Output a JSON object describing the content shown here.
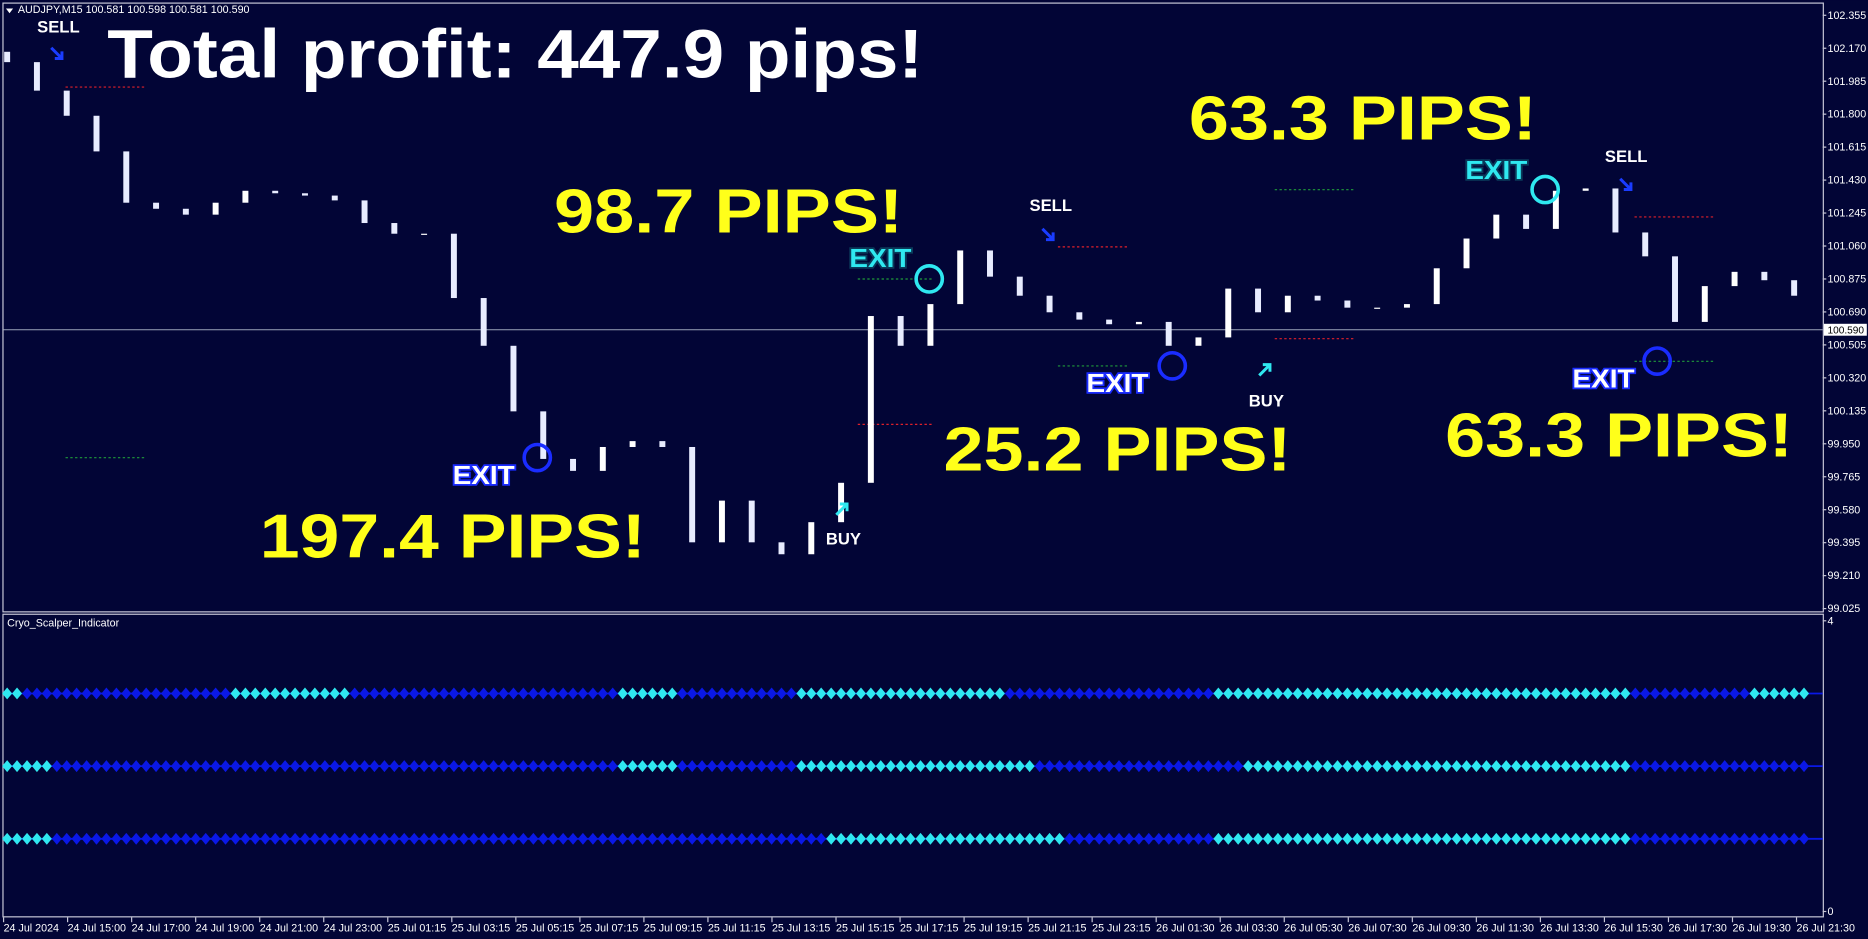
{
  "chart_data": [
    {
      "type": "candlestick",
      "header": "AUDJPY,M15  100.581 100.598 100.581 100.590",
      "open": [
        102.15,
        102.092,
        101.932,
        101.791,
        101.591,
        101.303,
        101.269,
        101.236,
        101.303,
        101.37,
        101.356,
        101.343,
        101.316,
        101.189,
        101.129,
        101.129,
        100.768,
        100.5,
        100.132,
        99.865,
        99.798,
        99.932,
        99.965,
        99.932,
        99.397,
        99.631,
        99.397,
        99.33,
        99.51,
        99.731,
        100.667,
        100.5,
        100.734,
        101.035,
        100.888,
        100.781,
        100.688,
        100.647,
        100.621,
        100.634,
        100.5,
        100.547,
        100.821,
        100.688,
        100.781,
        100.754,
        100.714,
        100.714,
        100.734,
        100.935,
        101.102,
        101.236,
        101.156,
        101.37,
        101.383,
        101.136,
        101.002,
        100.634,
        100.835,
        100.915,
        100.868
      ],
      "close": [
        102.092,
        101.932,
        101.791,
        101.591,
        101.303,
        101.269,
        101.236,
        101.303,
        101.37,
        101.356,
        101.343,
        101.316,
        101.189,
        101.129,
        101.129,
        100.768,
        100.5,
        100.132,
        99.865,
        99.798,
        99.932,
        99.965,
        99.932,
        99.397,
        99.631,
        99.397,
        99.33,
        99.51,
        99.731,
        100.667,
        100.5,
        100.734,
        101.035,
        100.888,
        100.781,
        100.688,
        100.647,
        100.621,
        100.634,
        100.5,
        100.547,
        100.821,
        100.688,
        100.781,
        100.754,
        100.714,
        100.714,
        100.734,
        100.935,
        101.102,
        101.236,
        101.156,
        101.37,
        101.383,
        101.136,
        101.002,
        100.634,
        100.835,
        100.915,
        100.868,
        100.781
      ],
      "up_color": "#ffffff",
      "down_color": "#e8ecff",
      "ylim": [
        99.01,
        102.42
      ],
      "yticks": [
        102.355,
        {
          "value": 102.17,
          "label": "102.170"
        },
        101.985,
        {
          "value": 101.8,
          "label": "101.800"
        },
        101.615,
        {
          "value": 101.43,
          "label": "101.430"
        },
        101.245,
        {
          "value": 101.06,
          "label": "101.060"
        },
        100.875,
        {
          "value": 100.69,
          "label": "100.690"
        },
        100.505,
        {
          "value": 100.32,
          "label": "100.320"
        },
        100.135,
        {
          "value": 99.95,
          "label": "99.950"
        },
        99.765,
        {
          "value": 99.58,
          "label": "99.580"
        },
        99.395,
        {
          "value": 99.21,
          "label": "99.210"
        },
        99.025
      ],
      "x_labels": [
        "24 Jul 2024",
        "24 Jul 15:00",
        "24 Jul 17:00",
        "24 Jul 19:00",
        "24 Jul 21:00",
        "24 Jul 23:00",
        "25 Jul 01:15",
        "25 Jul 03:15",
        "25 Jul 05:15",
        "25 Jul 07:15",
        "25 Jul 09:15",
        "25 Jul 11:15",
        "25 Jul 13:15",
        "25 Jul 15:15",
        "25 Jul 17:15",
        "25 Jul 19:15",
        "25 Jul 21:15",
        "25 Jul 23:15",
        "26 Jul 01:30",
        "26 Jul 03:30",
        "26 Jul 05:30",
        "26 Jul 07:30",
        "26 Jul 09:30",
        "26 Jul 11:30",
        "26 Jul 13:30",
        "26 Jul 15:30",
        "26 Jul 17:30",
        "26 Jul 19:30",
        "26 Jul 21:30"
      ],
      "current_price": {
        "value": 100.59,
        "label": "100.590"
      },
      "levels": [
        {
          "value": 101.952,
          "color": "#e0202a"
        },
        {
          "value": 99.872,
          "color": "#1f9a3a"
        },
        {
          "value": 100.059,
          "color": "#e0202a"
        },
        {
          "value": 100.875,
          "color": "#1f9a3a"
        },
        {
          "value": 101.055,
          "color": "#e0202a"
        },
        {
          "value": 100.387,
          "color": "#1f9a3a"
        },
        {
          "value": 101.376,
          "color": "#1f9a3a"
        },
        {
          "value": 100.54,
          "color": "#e0202a"
        },
        {
          "value": 101.223,
          "color": "#e0202a"
        },
        {
          "value": 100.413,
          "color": "#1f9a3a"
        }
      ],
      "annotations": [
        {
          "text": "Total profit: 447.9 pips!",
          "color": "#ffffff"
        },
        {
          "text": "98.7 PIPS!",
          "color": "#ffff1a"
        },
        {
          "text": "63.3 PIPS!",
          "color": "#ffff1a"
        },
        {
          "text": "197.4 PIPS!",
          "color": "#ffff1a"
        },
        {
          "text": "25.2 PIPS!",
          "color": "#ffff1a"
        },
        {
          "text": "63.3 PIPS!",
          "color": "#ffff1a"
        }
      ],
      "exits": [
        {
          "text": "EXIT",
          "color": "#ffffff",
          "ring": "#1a2cff"
        },
        {
          "text": "EXIT",
          "color": "#2fe8f0",
          "ring": "#2fe8f0"
        },
        {
          "text": "EXIT",
          "color": "#2fe8f0",
          "ring": "#2fe8f0"
        },
        {
          "text": "EXIT",
          "color": "#ffffff",
          "ring": "#1a2cff"
        },
        {
          "text": "EXIT",
          "color": "#ffffff",
          "ring": "#1a2cff"
        }
      ],
      "signals": [
        {
          "text": "SELL",
          "arrow_color": "#1a3cff"
        },
        {
          "text": "SELL",
          "arrow_color": "#1a3cff"
        },
        {
          "text": "SELL",
          "arrow_color": "#1a3cff"
        },
        {
          "text": "BUY",
          "arrow_color": "#2fe8f0"
        },
        {
          "text": "BUY",
          "arrow_color": "#2fe8f0"
        }
      ]
    },
    {
      "type": "signal-lanes",
      "title": "Cryo_Scalper_Indicator",
      "ylim": [
        0,
        4
      ],
      "yticks": [
        0,
        4
      ],
      "on_color": "#2fe8f0",
      "off_color": "#0a18e6",
      "lanes": [
        {
          "level": 3,
          "values": [
            1,
            0,
            0,
            0,
            0,
            0,
            0,
            0,
            1,
            1,
            1,
            1,
            0,
            0,
            0,
            0,
            0,
            0,
            0,
            0,
            0,
            1,
            1,
            0,
            0,
            0,
            0,
            1,
            1,
            1,
            1,
            1,
            1,
            1,
            0,
            0,
            0,
            0,
            0,
            0,
            0,
            1,
            1,
            1,
            1,
            1,
            1,
            1,
            1,
            1,
            1,
            1,
            1,
            1,
            1,
            0,
            0,
            0,
            0,
            1,
            1
          ]
        },
        {
          "level": 2,
          "values": [
            1,
            1,
            0,
            0,
            0,
            0,
            0,
            0,
            0,
            0,
            0,
            0,
            0,
            0,
            0,
            0,
            0,
            0,
            0,
            0,
            0,
            1,
            1,
            0,
            0,
            0,
            0,
            1,
            1,
            1,
            1,
            1,
            1,
            1,
            1,
            0,
            0,
            0,
            0,
            0,
            0,
            0,
            1,
            1,
            1,
            1,
            1,
            1,
            1,
            1,
            1,
            1,
            1,
            1,
            1,
            0,
            0,
            0,
            0,
            0,
            0
          ]
        },
        {
          "level": 1,
          "values": [
            1,
            1,
            0,
            0,
            0,
            0,
            0,
            0,
            0,
            0,
            0,
            0,
            0,
            0,
            0,
            0,
            0,
            0,
            0,
            0,
            0,
            0,
            0,
            0,
            0,
            0,
            0,
            0,
            1,
            1,
            1,
            1,
            1,
            1,
            1,
            1,
            0,
            0,
            0,
            0,
            0,
            1,
            1,
            1,
            1,
            1,
            1,
            1,
            1,
            1,
            1,
            1,
            1,
            1,
            1,
            0,
            0,
            0,
            0,
            0,
            0
          ]
        }
      ]
    }
  ]
}
